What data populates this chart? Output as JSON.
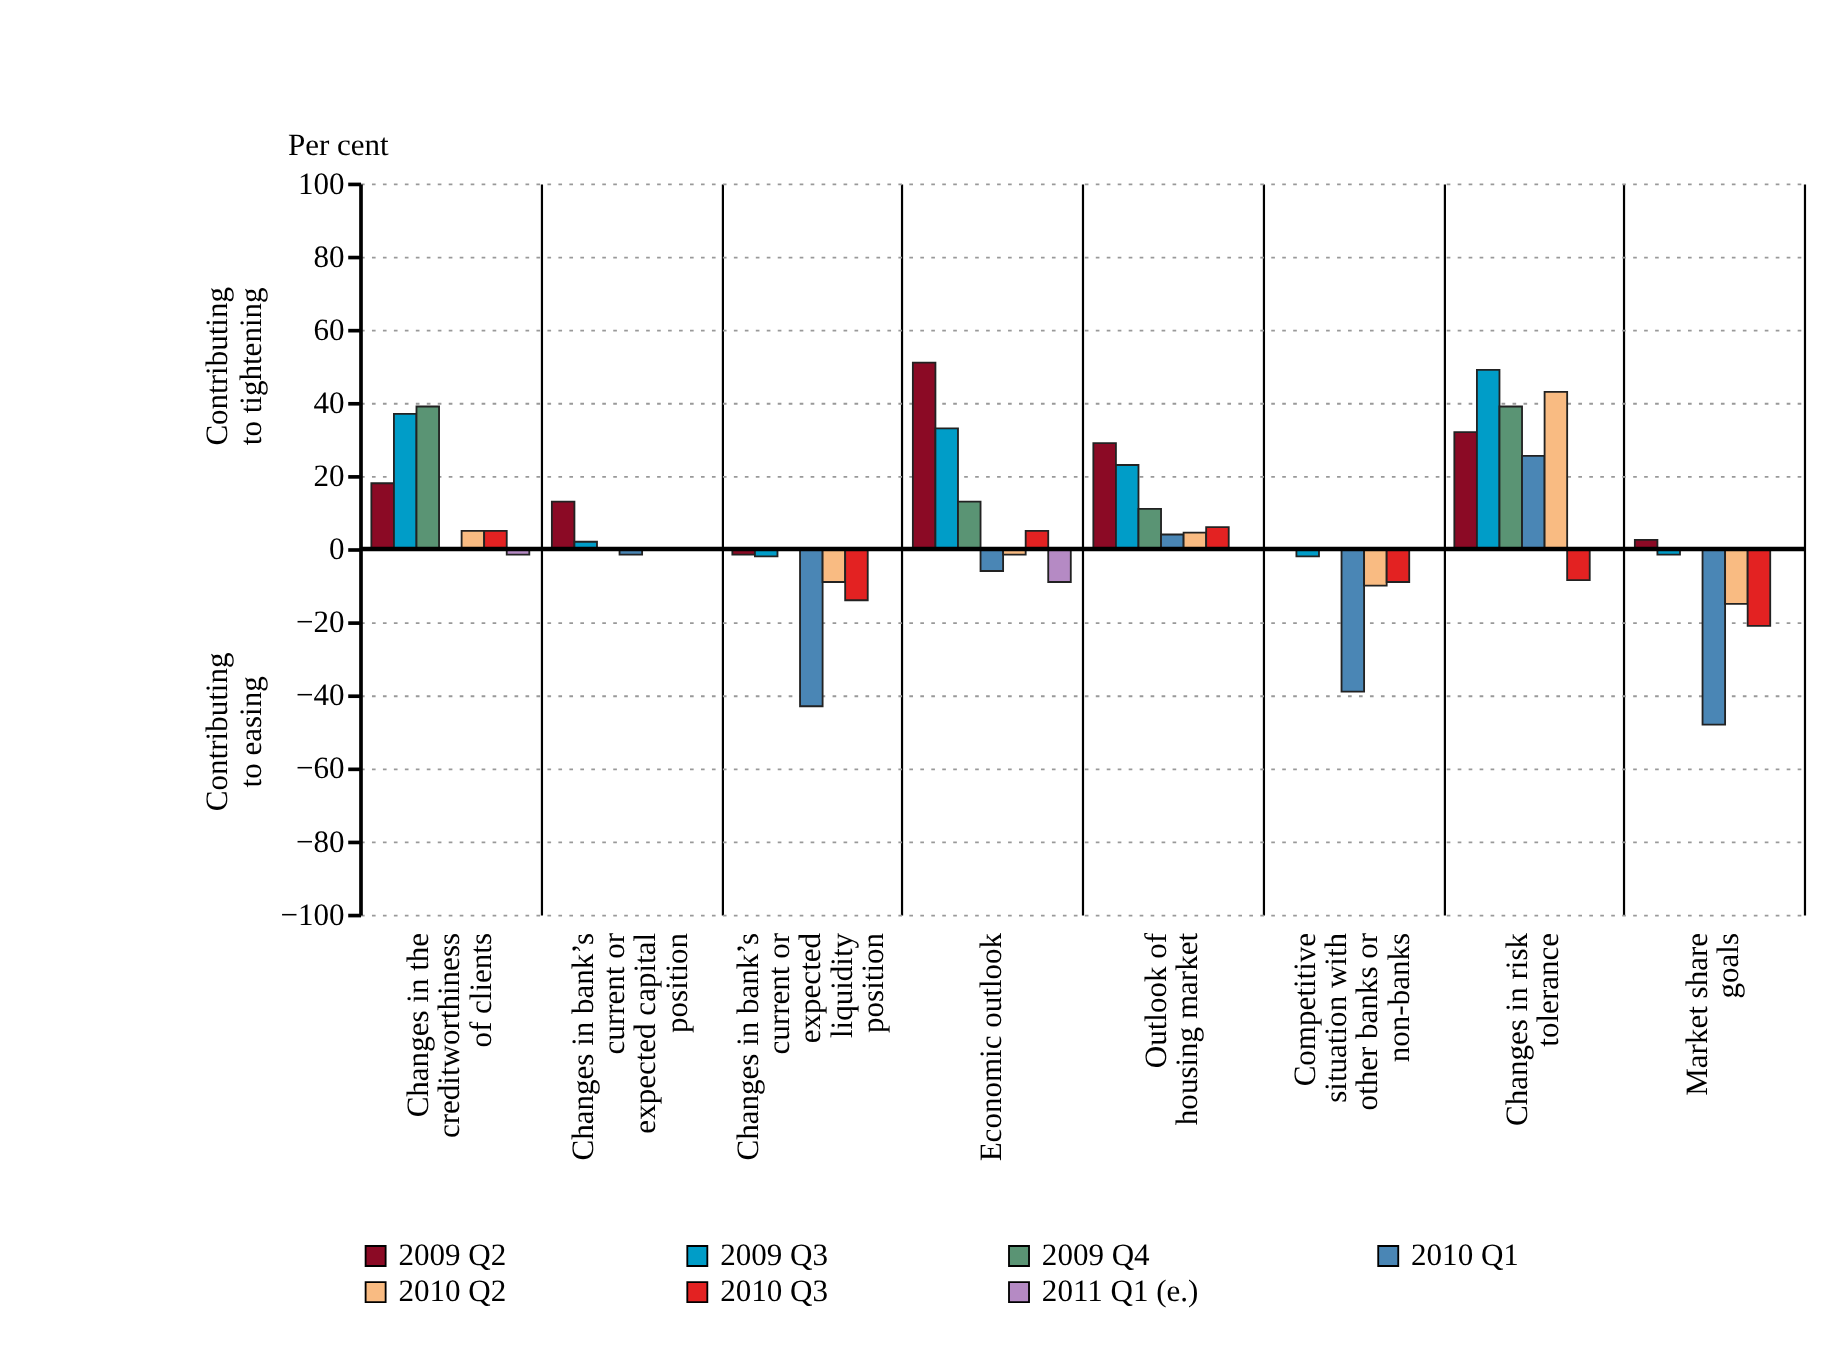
{
  "chart_data": {
    "type": "bar",
    "ylabel": "Per cent",
    "categories": [
      "Changes in the creditworthiness of clients",
      "Changes in bank’s current or expected capital position",
      "Changes in bank’s current or expected liquidity position",
      "Economic outlook",
      "Outlook of housing market",
      "Competitive situation with other banks or non-banks",
      "Changes in risk tolerance",
      "Market share goals"
    ],
    "series": [
      {
        "name": "2009 Q2",
        "color": "#8b0a25",
        "values": [
          18,
          13,
          -1.5,
          51,
          29,
          null,
          32,
          2.5
        ]
      },
      {
        "name": "2009 Q3",
        "color": "#009dc8",
        "values": [
          37,
          2,
          -2,
          33,
          23,
          -2,
          49,
          -1.5
        ]
      },
      {
        "name": "2009 Q4",
        "color": "#5a9474",
        "values": [
          39,
          null,
          null,
          13,
          11,
          null,
          39,
          null
        ]
      },
      {
        "name": "2010 Q1",
        "color": "#4a86b5",
        "values": [
          null,
          -1.5,
          -43,
          -6,
          4,
          -39,
          25.5,
          -48
        ]
      },
      {
        "name": "2010 Q2",
        "color": "#f9bb82",
        "values": [
          5,
          null,
          -9,
          -1.5,
          4.5,
          -10,
          43,
          -15
        ]
      },
      {
        "name": "2010 Q3",
        "color": "#e32222",
        "values": [
          5,
          null,
          -14,
          5,
          6,
          -9,
          -8.5,
          -21
        ]
      },
      {
        "name": "2011 Q1 (e.)",
        "color": "#b58ac4",
        "values": [
          -1.5,
          null,
          null,
          -9,
          null,
          null,
          null,
          null
        ]
      }
    ],
    "ylim": [
      -100,
      100
    ],
    "yticks": [
      -100,
      -80,
      -60,
      -40,
      -20,
      0,
      20,
      40,
      60,
      80,
      100
    ],
    "ref_lines": [
      {
        "axis": "y",
        "value": 0
      }
    ],
    "annotations": [
      "Contributing to tightening",
      "Contributing to easing"
    ],
    "grid": true,
    "legend": "bottom"
  }
}
